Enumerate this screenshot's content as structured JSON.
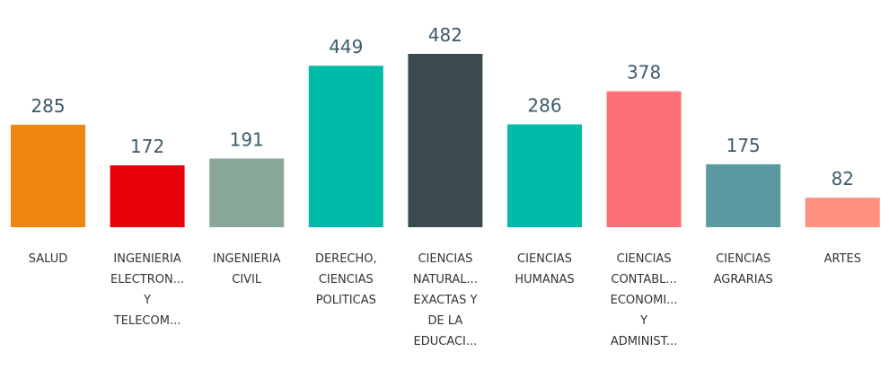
{
  "chart_data": {
    "type": "bar",
    "categories": [
      [
        "SALUD"
      ],
      [
        "INGENIERIA",
        "ELECTRON...",
        "Y",
        "TELECOM..."
      ],
      [
        "INGENIERIA",
        "CIVIL"
      ],
      [
        "DERECHO,",
        "CIENCIAS",
        "POLITICAS"
      ],
      [
        "CIENCIAS",
        "NATURAL...",
        "EXACTAS Y",
        "DE LA",
        "EDUCACI..."
      ],
      [
        "CIENCIAS",
        "HUMANAS"
      ],
      [
        "CIENCIAS",
        "CONTABL...",
        "ECONOMI...",
        "Y",
        "ADMINIST..."
      ],
      [
        "CIENCIAS",
        "AGRARIAS"
      ],
      [
        "ARTES"
      ]
    ],
    "values": [
      285,
      172,
      191,
      449,
      482,
      286,
      378,
      175,
      82
    ],
    "colors": [
      "#f0860d",
      "#e8000b",
      "#8aa89a",
      "#00bba7",
      "#3a4a4f",
      "#00bba7",
      "#ff6f78",
      "#5b9aa0",
      "#ff9080"
    ]
  }
}
